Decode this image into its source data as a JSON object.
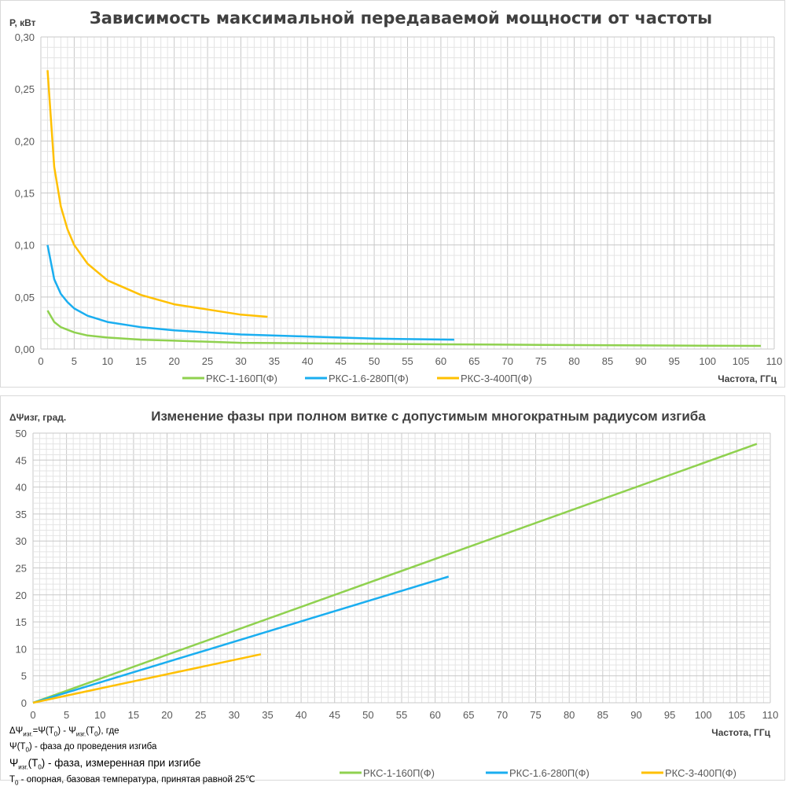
{
  "chart_data": [
    {
      "type": "line",
      "title": "Зависимость максимальной передаваемой мощности от частоты",
      "ylabel": "P, кВт",
      "xlabel": "Частота, ГГц",
      "xlim": [
        0,
        110
      ],
      "ylim": [
        0,
        0.3
      ],
      "x_ticks": [
        "0",
        "5",
        "10",
        "15",
        "20",
        "25",
        "30",
        "35",
        "40",
        "45",
        "50",
        "55",
        "60",
        "65",
        "70",
        "75",
        "80",
        "85",
        "90",
        "95",
        "100",
        "105",
        "110"
      ],
      "y_ticks": [
        "0,00",
        "0,05",
        "0,10",
        "0,15",
        "0,20",
        "0,25",
        "0,30"
      ],
      "grid": true,
      "legend_position": "bottom",
      "series": [
        {
          "name": "РКС-1-160П(Ф)",
          "color": "#8fd14f",
          "x": [
            1,
            2,
            3,
            5,
            7,
            10,
            15,
            20,
            30,
            40,
            50,
            60,
            75,
            90,
            108
          ],
          "y": [
            0.037,
            0.026,
            0.021,
            0.016,
            0.013,
            0.011,
            0.009,
            0.008,
            0.006,
            0.0055,
            0.005,
            0.0045,
            0.004,
            0.0035,
            0.003
          ]
        },
        {
          "name": "РКС-1.6-280П(Ф)",
          "color": "#1aaef0",
          "x": [
            1,
            2,
            3,
            4,
            5,
            7,
            10,
            15,
            20,
            30,
            40,
            50,
            62
          ],
          "y": [
            0.1,
            0.067,
            0.053,
            0.045,
            0.039,
            0.032,
            0.026,
            0.021,
            0.018,
            0.014,
            0.012,
            0.01,
            0.009
          ]
        },
        {
          "name": "РКС-3-400П(Ф)",
          "color": "#ffc000",
          "x": [
            1,
            2,
            3,
            4,
            5,
            7,
            10,
            15,
            20,
            25,
            30,
            34
          ],
          "y": [
            0.268,
            0.175,
            0.137,
            0.115,
            0.1,
            0.082,
            0.066,
            0.052,
            0.043,
            0.038,
            0.033,
            0.031
          ]
        }
      ]
    },
    {
      "type": "line",
      "title": "Изменение фазы при полном витке с допустимым многократным радиусом изгиба",
      "ylabel": "ΔΨизг, град.",
      "xlabel": "Частота, ГГц",
      "xlim": [
        0,
        110
      ],
      "ylim": [
        0,
        50
      ],
      "x_ticks": [
        "0",
        "5",
        "10",
        "15",
        "20",
        "25",
        "30",
        "35",
        "40",
        "45",
        "50",
        "55",
        "60",
        "65",
        "70",
        "75",
        "80",
        "85",
        "90",
        "95",
        "100",
        "105",
        "110"
      ],
      "y_ticks": [
        "0",
        "5",
        "10",
        "15",
        "20",
        "25",
        "30",
        "35",
        "40",
        "45",
        "50"
      ],
      "grid": true,
      "legend_position": "bottom-right",
      "series": [
        {
          "name": "РКС-1-160П(Ф)",
          "color": "#8fd14f",
          "x": [
            0,
            108
          ],
          "y": [
            0,
            48
          ]
        },
        {
          "name": "РКС-1.6-280П(Ф)",
          "color": "#1aaef0",
          "x": [
            0,
            62
          ],
          "y": [
            0,
            23.4
          ]
        },
        {
          "name": "РКС-3-400П(Ф)",
          "color": "#ffc000",
          "x": [
            0,
            34
          ],
          "y": [
            0,
            9
          ]
        }
      ]
    }
  ],
  "notes": [
    [
      [
        "ΔΨ",
        0
      ],
      [
        "изг.",
        1
      ],
      [
        "=Ψ(T",
        0
      ],
      [
        "0",
        1
      ],
      [
        ") - Ψ",
        0
      ],
      [
        "изг.",
        1
      ],
      [
        "(T",
        0
      ],
      [
        "0",
        1
      ],
      [
        "), где",
        0
      ]
    ],
    [
      [
        "Ψ(T",
        0
      ],
      [
        "0",
        1
      ],
      [
        ") - фаза до проведения  изгиба",
        0
      ]
    ],
    [
      [
        "Ψ",
        0
      ],
      [
        "изг.",
        1
      ],
      [
        "(T",
        0
      ],
      [
        "0",
        1
      ],
      [
        ") - фаза,  измеренная при изгибе",
        0
      ]
    ],
    [
      [
        "T",
        0
      ],
      [
        "0",
        1
      ],
      [
        " - опорная, базовая температура, принятая равной 25℃",
        0
      ]
    ]
  ]
}
